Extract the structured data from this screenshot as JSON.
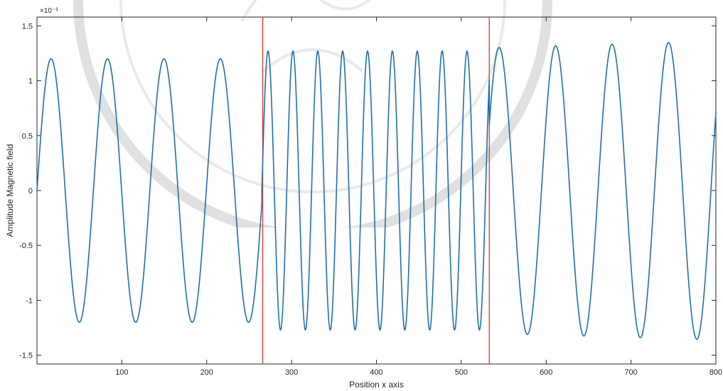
{
  "chart_data": {
    "type": "line",
    "title": "",
    "xlabel": "Position x axis",
    "ylabel": "Amplitude Magnetic field",
    "y_exponent_label": "×10⁻³",
    "xlim": [
      0,
      800
    ],
    "ylim": [
      -1.58,
      1.58
    ],
    "xticks": [
      100,
      200,
      300,
      400,
      500,
      600,
      700,
      800
    ],
    "yticks": [
      -1.5,
      -1,
      -0.5,
      0,
      0.5,
      1,
      1.5
    ],
    "xtick_labels": [
      "100",
      "200",
      "300",
      "400",
      "500",
      "600",
      "700",
      "800"
    ],
    "ytick_labels": [
      "-1.5",
      "-1",
      "-0.5",
      "0",
      "0.5",
      "1",
      "1.5"
    ],
    "grid": false,
    "series": [
      {
        "color": "#1f6fb0",
        "segments": [
          {
            "x_start": 0,
            "x_end": 265,
            "amplitude": 1.2,
            "period": 66.5,
            "phase_zero_at": 0
          },
          {
            "x_start": 265,
            "x_end": 533,
            "amplitude": 1.27,
            "period": 29.3,
            "phase_zero_at": 265
          },
          {
            "x_start": 533,
            "x_end": 800,
            "amplitude_start": 1.3,
            "amplitude_end": 1.36,
            "period": 66.5,
            "phase_zero_at": 533,
            "start_value": 0.6
          }
        ]
      }
    ],
    "vertical_lines": [
      {
        "x": 266,
        "color": "#e0342a"
      },
      {
        "x": 533,
        "color": "#e0342a"
      }
    ]
  }
}
